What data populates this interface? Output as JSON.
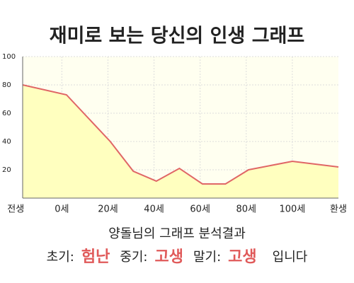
{
  "chart_data": {
    "type": "area",
    "title": "재미로 보는 당신의 인생 그래프",
    "x": [
      -17,
      2,
      21,
      31,
      41,
      51,
      61,
      71,
      81,
      100,
      120
    ],
    "series": [
      {
        "color": "#e06666",
        "fill": "#ffffbf",
        "values": [
          80,
          73,
          40,
          19,
          12,
          21,
          10,
          10,
          20,
          26,
          22
        ]
      }
    ],
    "xlim": [
      -17,
      120
    ],
    "xticks": [
      {
        "value": -20,
        "label": "전생"
      },
      {
        "value": 0,
        "label": "0세"
      },
      {
        "value": 20,
        "label": "20세"
      },
      {
        "value": 40,
        "label": "40세"
      },
      {
        "value": 60,
        "label": "60세"
      },
      {
        "value": 80,
        "label": "80세"
      },
      {
        "value": 100,
        "label": "100세"
      },
      {
        "value": 120,
        "label": "환생"
      }
    ],
    "ylim": [
      0,
      100
    ],
    "yticks": [
      20,
      40,
      60,
      80,
      100
    ],
    "grid": true
  },
  "result": {
    "heading": "양돌님의 그래프 분석결과",
    "items": [
      {
        "label": "초기:",
        "value": "험난"
      },
      {
        "label": "중기:",
        "value": "고생"
      },
      {
        "label": "말기:",
        "value": "고생"
      }
    ],
    "suffix": "입니다"
  }
}
